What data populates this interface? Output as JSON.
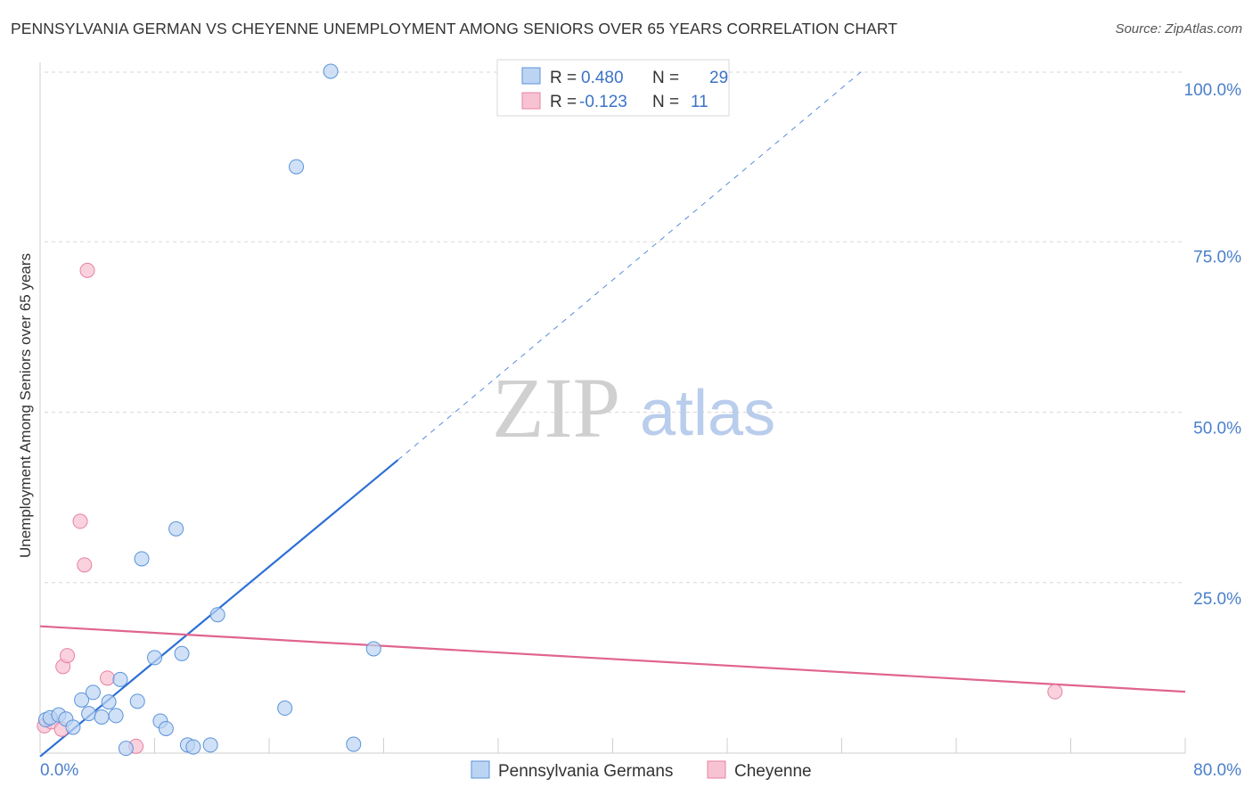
{
  "title": "PENNSYLVANIA GERMAN VS CHEYENNE UNEMPLOYMENT AMONG SENIORS OVER 65 YEARS CORRELATION CHART",
  "source": "Source: ZipAtlas.com",
  "watermark": {
    "zip": "ZIP",
    "atlas": "atlas"
  },
  "colors": {
    "blue": "#5b93d9",
    "blue_fill": "#bcd4f3",
    "blue_line": "#2c6fd4",
    "pink": "#e880a3",
    "pink_fill": "#f7c3d3",
    "pink_line": "#e0648f",
    "grid": "#d7d7d7",
    "tick_text": "#4a7fcb"
  },
  "legend": {
    "rows": [
      {
        "r_label": "R =",
        "r_value": "0.480",
        "n_label": "N =",
        "n_value": "29"
      },
      {
        "r_label": "R =",
        "r_value": "-0.123",
        "n_label": "N =",
        "n_value": "11"
      }
    ]
  },
  "chart_data": {
    "type": "scatter",
    "title": "PENNSYLVANIA GERMAN VS CHEYENNE UNEMPLOYMENT AMONG SENIORS OVER 65 YEARS CORRELATION CHART",
    "xlabel": "",
    "ylabel": "Unemployment Among Seniors over 65 years",
    "xlim": [
      0,
      80
    ],
    "ylim": [
      0,
      100
    ],
    "x_tick_labels": [
      "0.0%",
      "80.0%"
    ],
    "y_tick_labels": [
      "100.0%",
      "75.0%",
      "50.0%",
      "25.0%"
    ],
    "y_tick_values": [
      100,
      75,
      50,
      25
    ],
    "grid": true,
    "series": [
      {
        "name": "Pennsylvania Germans",
        "r": 0.48,
        "n": 29,
        "points": [
          [
            0.4,
            4.9
          ],
          [
            0.7,
            5.2
          ],
          [
            1.3,
            5.6
          ],
          [
            1.8,
            5.0
          ],
          [
            2.3,
            3.8
          ],
          [
            2.9,
            7.8
          ],
          [
            3.4,
            5.8
          ],
          [
            3.7,
            8.9
          ],
          [
            4.3,
            5.3
          ],
          [
            4.8,
            7.5
          ],
          [
            5.3,
            5.5
          ],
          [
            5.6,
            10.8
          ],
          [
            6.0,
            0.7
          ],
          [
            6.8,
            7.6
          ],
          [
            7.1,
            28.5
          ],
          [
            8.0,
            14.0
          ],
          [
            8.4,
            4.7
          ],
          [
            8.8,
            3.6
          ],
          [
            9.5,
            32.9
          ],
          [
            9.9,
            14.6
          ],
          [
            10.3,
            1.2
          ],
          [
            10.7,
            0.9
          ],
          [
            11.9,
            1.2
          ],
          [
            12.4,
            20.3
          ],
          [
            17.1,
            6.6
          ],
          [
            17.9,
            86.0
          ],
          [
            20.3,
            100.0
          ],
          [
            21.9,
            1.3
          ],
          [
            23.3,
            15.3
          ]
        ],
        "trend": {
          "x0": 0.0,
          "y0": -0.5,
          "x1": 25.0,
          "y1": 43.0,
          "dash_x1": 57.4,
          "dash_y1": 100.0
        }
      },
      {
        "name": "Cheyenne",
        "r": -0.123,
        "n": 11,
        "points": [
          [
            0.3,
            4.0
          ],
          [
            0.8,
            4.6
          ],
          [
            1.5,
            3.5
          ],
          [
            2.8,
            34.0
          ],
          [
            3.1,
            27.6
          ],
          [
            3.3,
            70.8
          ],
          [
            1.6,
            12.7
          ],
          [
            1.9,
            14.3
          ],
          [
            4.7,
            11.0
          ],
          [
            6.7,
            1.0
          ],
          [
            70.9,
            9.0
          ]
        ],
        "trend": {
          "x0": 0.0,
          "y0": 18.6,
          "x1": 80.0,
          "y1": 9.0
        }
      }
    ]
  }
}
